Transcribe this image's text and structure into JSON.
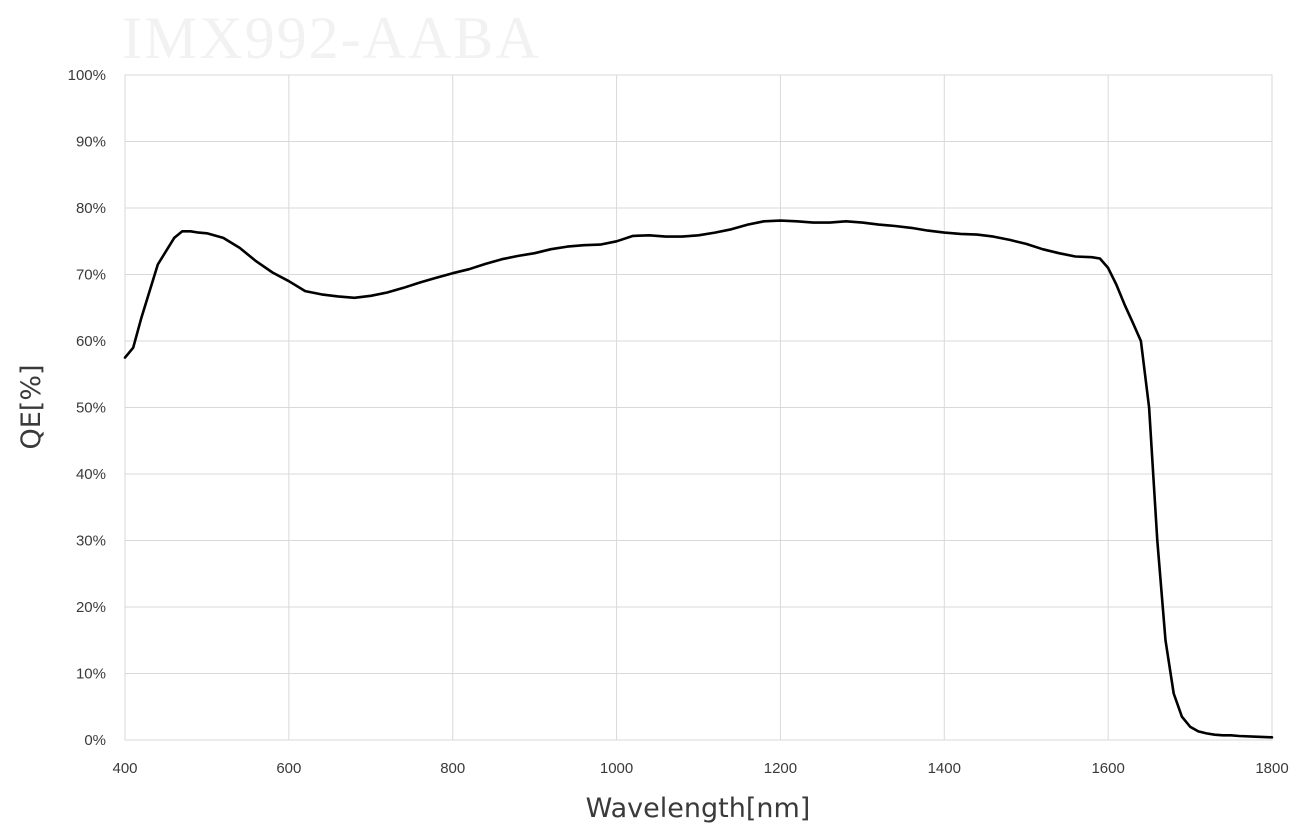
{
  "watermark_text": "IMX992-AABA",
  "chart_data": {
    "type": "line",
    "xlabel": "Wavelength[nm]",
    "ylabel": "QE[%]",
    "xlim": [
      400,
      1800
    ],
    "ylim": [
      0,
      100
    ],
    "x_ticks": [
      400,
      600,
      800,
      1000,
      1200,
      1400,
      1600,
      1800
    ],
    "x_tick_labels": [
      "400",
      "600",
      "800",
      "1000",
      "1200",
      "1400",
      "1600",
      "1800"
    ],
    "y_ticks": [
      0,
      10,
      20,
      30,
      40,
      50,
      60,
      70,
      80,
      90,
      100
    ],
    "y_tick_labels": [
      "0%",
      "10%",
      "20%",
      "30%",
      "40%",
      "50%",
      "60%",
      "70%",
      "80%",
      "90%",
      "100%"
    ],
    "grid": true,
    "legend": "none",
    "series": [
      {
        "color": "#000000",
        "x": [
          400,
          410,
          420,
          430,
          440,
          450,
          460,
          470,
          480,
          490,
          500,
          520,
          540,
          560,
          580,
          600,
          620,
          640,
          660,
          680,
          700,
          720,
          740,
          760,
          780,
          800,
          820,
          840,
          860,
          880,
          900,
          920,
          940,
          960,
          980,
          1000,
          1020,
          1040,
          1060,
          1080,
          1100,
          1120,
          1140,
          1160,
          1180,
          1200,
          1220,
          1240,
          1260,
          1280,
          1300,
          1320,
          1340,
          1360,
          1380,
          1400,
          1420,
          1440,
          1460,
          1480,
          1500,
          1520,
          1540,
          1560,
          1580,
          1590,
          1600,
          1610,
          1620,
          1630,
          1640,
          1650,
          1660,
          1670,
          1680,
          1690,
          1700,
          1710,
          1720,
          1730,
          1740,
          1750,
          1760,
          1780,
          1800
        ],
        "y": [
          57.5,
          59,
          63.5,
          67.5,
          71.5,
          73.5,
          75.5,
          76.5,
          76.5,
          76.3,
          76.2,
          75.5,
          74,
          72,
          70.3,
          69,
          67.5,
          67,
          66.7,
          66.5,
          66.8,
          67.3,
          68,
          68.8,
          69.5,
          70.2,
          70.8,
          71.6,
          72.3,
          72.8,
          73.2,
          73.8,
          74.2,
          74.4,
          74.5,
          75,
          75.8,
          75.9,
          75.7,
          75.7,
          75.9,
          76.3,
          76.8,
          77.5,
          78,
          78.1,
          78,
          77.8,
          77.8,
          78,
          77.8,
          77.5,
          77.3,
          77,
          76.6,
          76.3,
          76.1,
          76,
          75.7,
          75.2,
          74.6,
          73.8,
          73.2,
          72.7,
          72.6,
          72.4,
          71,
          68.5,
          65.5,
          62.8,
          60,
          50,
          30,
          15,
          7,
          3.5,
          2,
          1.3,
          1,
          0.8,
          0.7,
          0.7,
          0.6,
          0.5,
          0.4
        ]
      }
    ]
  }
}
